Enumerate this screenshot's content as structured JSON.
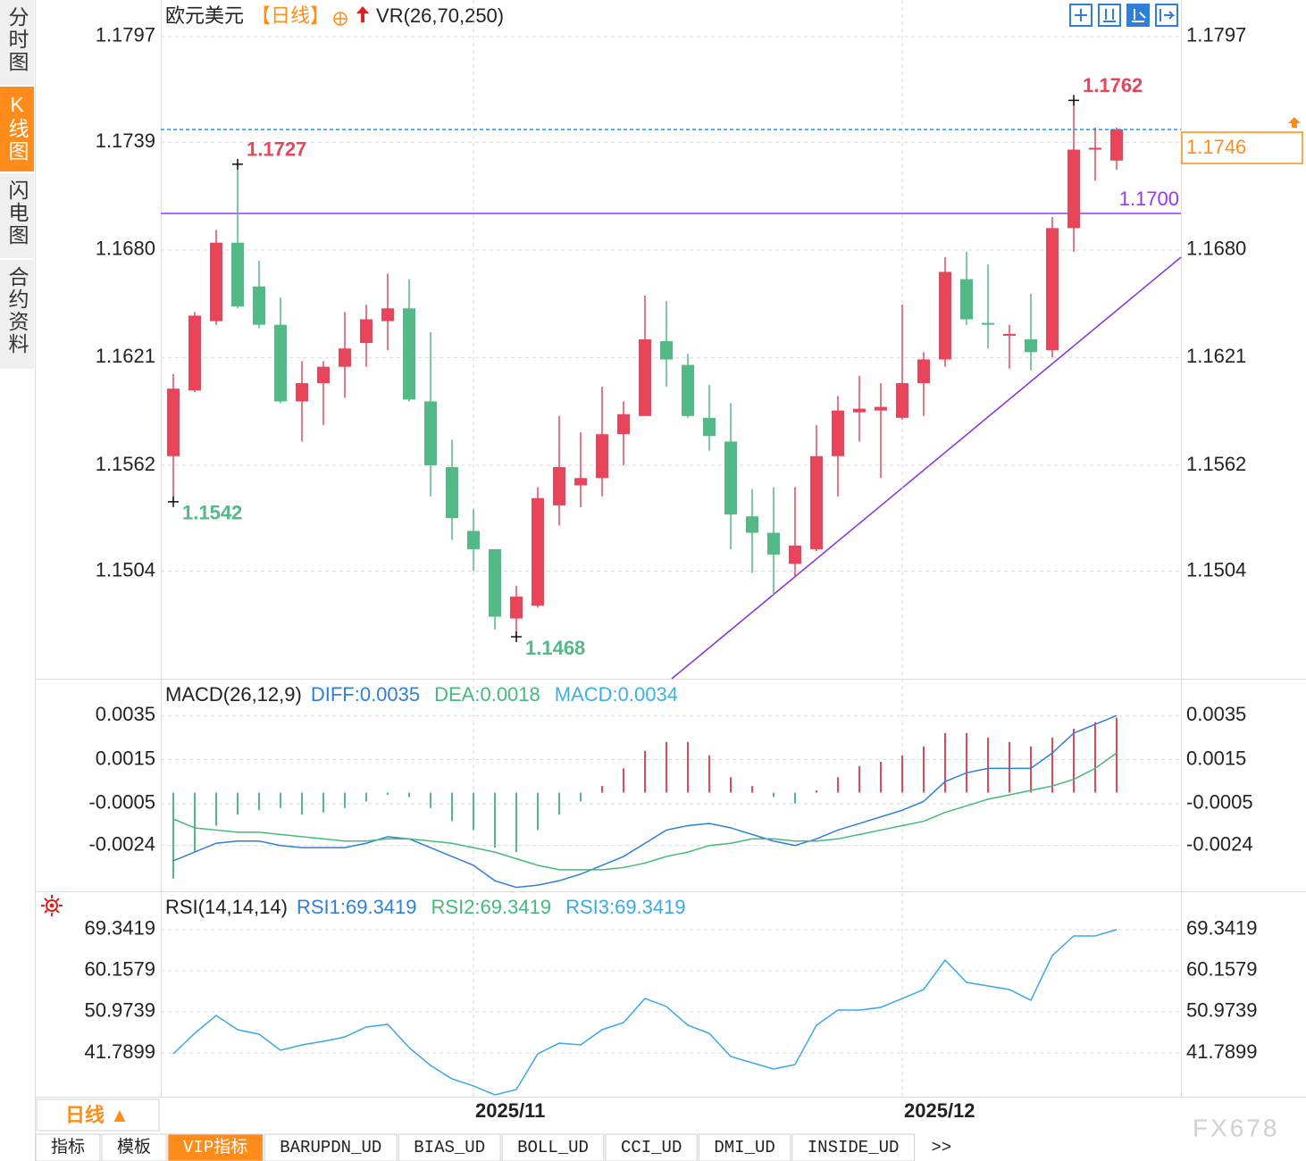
{
  "chart_data": [
    {
      "type": "candlestick",
      "title": "欧元美元",
      "period": "【日线】",
      "period_color": "#ff8c1a",
      "indicator": "VR(26,70,250)",
      "categories": [
        null,
        null,
        null,
        null,
        null,
        null,
        null,
        null,
        null,
        null,
        null,
        null,
        null,
        null,
        "2025/11",
        null,
        null,
        null,
        null,
        null,
        null,
        null,
        null,
        null,
        null,
        null,
        null,
        null,
        null,
        null,
        null,
        null,
        null,
        null,
        "2025/12",
        null,
        null,
        null,
        null,
        null,
        null,
        null,
        null,
        null,
        null
      ],
      "open": [
        1.1567,
        1.1603,
        1.1641,
        1.1684,
        1.166,
        1.1639,
        1.1597,
        1.1607,
        1.1616,
        1.1629,
        1.1641,
        1.1648,
        1.1597,
        1.1561,
        1.1526,
        1.1516,
        1.1478,
        1.1485,
        1.154,
        1.1551,
        1.1555,
        1.1579,
        1.1589,
        1.163,
        1.1617,
        1.1588,
        1.1575,
        1.1534,
        1.1525,
        1.1508,
        1.1516,
        1.1567,
        1.1591,
        1.1592,
        1.1588,
        1.1607,
        1.162,
        1.1664,
        1.164,
        1.1633,
        1.1631,
        1.1625,
        1.1692,
        1.1735,
        1.1729
      ],
      "high": [
        1.1612,
        1.1646,
        1.1691,
        1.1727,
        1.1674,
        1.1654,
        1.1619,
        1.1619,
        1.1646,
        1.165,
        1.1667,
        1.1664,
        1.1635,
        1.1576,
        1.1538,
        1.1516,
        1.1496,
        1.155,
        1.1589,
        1.158,
        1.1605,
        1.1597,
        1.1655,
        1.1652,
        1.1623,
        1.1606,
        1.1596,
        1.1549,
        1.155,
        1.155,
        1.1584,
        1.16,
        1.1611,
        1.1607,
        1.165,
        1.1624,
        1.1676,
        1.1679,
        1.1672,
        1.1639,
        1.1656,
        1.1698,
        1.1762,
        1.1747,
        1.1747
      ],
      "low": [
        1.1542,
        1.1602,
        1.1639,
        1.1648,
        1.1637,
        1.1596,
        1.1575,
        1.1584,
        1.1599,
        1.1616,
        1.1625,
        1.1597,
        1.1545,
        1.1521,
        1.1504,
        1.1472,
        1.1468,
        1.1484,
        1.1529,
        1.1539,
        1.1545,
        1.1562,
        1.1589,
        1.1605,
        1.1588,
        1.157,
        1.1516,
        1.1503,
        1.1491,
        1.1501,
        1.1515,
        1.1545,
        1.1575,
        1.1555,
        1.1587,
        1.1589,
        1.1616,
        1.1639,
        1.1626,
        1.1615,
        1.1614,
        1.1621,
        1.1679,
        1.1718,
        1.1724
      ],
      "close": [
        1.1604,
        1.1644,
        1.1684,
        1.1649,
        1.1639,
        1.1597,
        1.1607,
        1.1616,
        1.1626,
        1.1642,
        1.1648,
        1.1598,
        1.1562,
        1.1533,
        1.1516,
        1.1479,
        1.149,
        1.1544,
        1.1561,
        1.1555,
        1.1579,
        1.159,
        1.1631,
        1.162,
        1.1589,
        1.1578,
        1.1535,
        1.1525,
        1.1513,
        1.1518,
        1.1567,
        1.1592,
        1.1593,
        1.1594,
        1.1607,
        1.162,
        1.1668,
        1.1642,
        1.1639,
        1.1634,
        1.1624,
        1.1692,
        1.1735,
        1.1736,
        1.1746
      ],
      "up_color": "#e8455a",
      "down_color": "#52b987",
      "marker_labels": [
        1.1727,
        1.1542,
        1.1468,
        1.1762
      ],
      "reference_line": {
        "value": 1.17,
        "label": "1.1700",
        "color": "#9b30ff"
      },
      "last_price": {
        "value": 1.1746,
        "color": "#ff8c1a",
        "line_color": "#1e90ff"
      },
      "ylim": [
        1.1445,
        1.1817
      ],
      "yticks": [
        1.1797,
        1.1739,
        {
          "value": 1.168,
          "label": "1.1680"
        },
        1.1621,
        1.1562,
        1.1504
      ],
      "grid": true
    },
    {
      "type": "combo",
      "title": "MACD(26,12,9)",
      "series": [
        {
          "name": "DIFF:0.0035",
          "kind": "line",
          "color": "#2f7fd8",
          "values": [
            -0.0031,
            -0.0027,
            -0.0023,
            -0.0022,
            -0.0022,
            -0.0024,
            -0.0025,
            -0.0025,
            -0.0025,
            -0.0023,
            -0.002,
            -0.0021,
            -0.0025,
            -0.0029,
            -0.0033,
            -0.004,
            -0.0043,
            -0.0042,
            -0.004,
            -0.0037,
            -0.0033,
            -0.0029,
            -0.0023,
            -0.0017,
            -0.0015,
            -0.0014,
            -0.0016,
            -0.0019,
            -0.0022,
            -0.0024,
            -0.0021,
            -0.0017,
            -0.0014,
            -0.0011,
            -0.0008,
            -0.0004,
            0.0005,
            0.0009,
            0.0011,
            0.0011,
            0.0011,
            0.0018,
            0.0027,
            0.0031,
            0.0035
          ]
        },
        {
          "name": "DEA:0.0018",
          "kind": "line",
          "color": "#45b97c",
          "values": [
            -0.0012,
            -0.0016,
            -0.0017,
            -0.0018,
            -0.0018,
            -0.0019,
            -0.002,
            -0.0021,
            -0.0022,
            -0.0022,
            -0.0021,
            -0.0021,
            -0.0022,
            -0.0023,
            -0.0025,
            -0.0027,
            -0.003,
            -0.0033,
            -0.0035,
            -0.0035,
            -0.0035,
            -0.0034,
            -0.0032,
            -0.0029,
            -0.0027,
            -0.0024,
            -0.0023,
            -0.0021,
            -0.0021,
            -0.0022,
            -0.0022,
            -0.0021,
            -0.0019,
            -0.0017,
            -0.0015,
            -0.0013,
            -0.0009,
            -0.0006,
            -0.0003,
            -0.0001,
            0.0001,
            0.0003,
            0.0006,
            0.0011,
            0.0018
          ]
        },
        {
          "name": "MACD:0.0034",
          "kind": "bar",
          "color": "#3bb0e8",
          "up_color": "#e8455a",
          "down_color": "#52b987",
          "values": [
            -0.0039,
            -0.0027,
            -0.0015,
            -0.001,
            -0.0008,
            -0.0007,
            -0.001,
            -0.0009,
            -0.0007,
            -0.0004,
            -0.0001,
            -0.0002,
            -0.0007,
            -0.0013,
            -0.0017,
            -0.0025,
            -0.0027,
            -0.0017,
            -0.001,
            -0.0004,
            0.0003,
            0.0011,
            0.0019,
            0.0023,
            0.0023,
            0.0017,
            0.0007,
            0.0003,
            -0.0002,
            -0.0005,
            0.0001,
            0.0007,
            0.0012,
            0.0014,
            0.0017,
            0.0021,
            0.0027,
            0.0027,
            0.0025,
            0.0023,
            0.0021,
            0.0025,
            0.0029,
            0.0032,
            0.0034
          ]
        }
      ],
      "ylim": [
        -0.00448,
        0.00517
      ],
      "yticks": [
        0.0035,
        0.0015,
        -0.0005,
        -0.0024
      ],
      "grid": true
    },
    {
      "type": "line",
      "title": "RSI(14,14,14)",
      "other_legend": [
        {
          "name": "RSI1:69.3419",
          "color": "#2f7fd8"
        },
        {
          "name": "RSI2:69.3419",
          "color": "#45b97c"
        }
      ],
      "series": [
        {
          "name": "RSI3:69.3419",
          "kind": "line",
          "color": "#3aa8e8",
          "values": [
            41.58,
            46.17,
            50.16,
            46.97,
            45.97,
            42.38,
            43.58,
            44.37,
            45.37,
            47.57,
            48.17,
            42.98,
            38.99,
            35.99,
            34.4,
            32.4,
            33.6,
            41.58,
            43.97,
            43.58,
            46.97,
            48.56,
            53.95,
            52.16,
            47.97,
            46.17,
            40.98,
            39.58,
            38.19,
            39.19,
            47.97,
            51.36,
            51.36,
            51.96,
            53.95,
            55.95,
            62.53,
            57.54,
            56.75,
            55.95,
            53.55,
            63.53,
            67.92,
            67.92,
            69.3419
          ]
        }
      ],
      "ylim": [
        32.0,
        77.9
      ],
      "yticks": [
        69.3419,
        60.1579,
        50.9739,
        41.7899
      ],
      "grid": true
    }
  ],
  "sidebar": {
    "tabs": [
      "分时图",
      "K线图",
      "闪电图",
      "合约资料"
    ],
    "active": 1
  },
  "period_button": "日线 ▲",
  "bottom_tabs": {
    "tabs": [
      "指标",
      "模板",
      "VIP指标",
      "BARUPDN_UD",
      "BIAS_UD",
      "BOLL_UD",
      "CCI_UD",
      "DMI_UD",
      "INSIDE_UD",
      ">>"
    ],
    "active": 2
  },
  "watermark": "FX678"
}
